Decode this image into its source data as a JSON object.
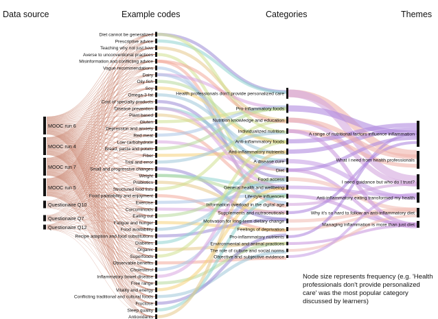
{
  "headers": {
    "data_source": "Data source",
    "example_codes": "Example codes",
    "categories": "Categories",
    "themes": "Themes"
  },
  "sources": [
    "MOOC run 6",
    "MOOC run 4",
    "MOOC run 7",
    "MOOC run 5",
    "Questionaire Q10",
    "Questionaire Q7",
    "Questionaire Q12"
  ],
  "codes": [
    "Diet cannot be generalized",
    "Prescriptive advice",
    "Teaching why not just how",
    "Averse to unconventional practices",
    "Misinformation and conflicting advice",
    "Vague recommendations",
    "Dairy",
    "Oily fish",
    "Soy",
    "Omega-3 fat",
    "Cost of specialty products",
    "Disease prevention",
    "Plant based",
    "Gluten",
    "Depression and anxiety",
    "Red meat",
    "Low carbohydrate",
    "Bread, pasta and potato",
    "Fiber",
    "Trial and error",
    "Small and progressive changes",
    "Weight",
    "Probiotics",
    "Structured food lists",
    "Food palatability and enjoyment",
    "Exercise",
    "Curcuminoids",
    "Eating out",
    "Fatigue and hunger",
    "Food availability",
    "Recipe adaption and food substitutions",
    "Diabetes",
    "Organic",
    "Superfoods",
    "Observable benefits",
    "Cholesterol",
    "Inflammatory bowel disease",
    "Free range",
    "Vitality and energy",
    "Conflicting traditional and cultural foods",
    "Fructose",
    "Sleep quality",
    "Antioxidants"
  ],
  "categories": [
    "Health professionals don't provide personalized care",
    "Pro-inflammatory foods",
    "Nutrition knowledge and education",
    "Individualized nutrition",
    "Anti-inflammatory foods",
    "Anti-inflammatory nutrients",
    "A disease cure",
    "Diet",
    "Food access",
    "General health and wellbeing",
    "Lifestyle influences",
    "Information overload in the digital age",
    "Supplements and nutraceuticals",
    "Motivation for long-term dietary change",
    "Feelings of deprivation",
    "Pro-inflammatory nutrients",
    "Environmental and animal practices",
    "The role of culture and social norms",
    "Objective and subjective evidence"
  ],
  "themes": [
    "A range of nutritional factors influence inflammation",
    "What I need from health professionals",
    "I need guidance but who do I trust?",
    "Anti-inflammatory eating transformed my health",
    "Why it's so hard to follow an anti-inflammatory diet",
    "Managing inflammation is more than just diet"
  ],
  "note": "Node size represents frequency (e.g. 'Health professionals don't provide personalized care' was the most popular category discussed by learners)",
  "colors": {
    "node": "#111111",
    "source_flow": "#c9826b",
    "palette": [
      "#9b8ad6",
      "#8fd4cf",
      "#e6c98a",
      "#cfe08f",
      "#f2a99a",
      "#a9c4e6",
      "#d8a6e0",
      "#b6d89a",
      "#f5d27a",
      "#9fc6d8"
    ],
    "theme_flows": [
      "#b08ae0",
      "#f0b4ab",
      "#d4a6de",
      "#c8a2e6",
      "#f2c0b8",
      "#cc9be0"
    ]
  },
  "flows": {
    "code_to_category": [
      [
        0,
        0
      ],
      [
        1,
        0
      ],
      [
        2,
        2
      ],
      [
        3,
        9
      ],
      [
        4,
        11
      ],
      [
        5,
        11
      ],
      [
        6,
        1
      ],
      [
        7,
        4
      ],
      [
        8,
        4
      ],
      [
        9,
        5
      ],
      [
        10,
        8
      ],
      [
        11,
        6
      ],
      [
        12,
        7
      ],
      [
        13,
        1
      ],
      [
        14,
        9
      ],
      [
        15,
        1
      ],
      [
        16,
        7
      ],
      [
        17,
        1
      ],
      [
        18,
        5
      ],
      [
        19,
        3
      ],
      [
        20,
        13
      ],
      [
        21,
        9
      ],
      [
        22,
        12
      ],
      [
        23,
        2
      ],
      [
        24,
        14
      ],
      [
        25,
        10
      ],
      [
        26,
        12
      ],
      [
        27,
        8
      ],
      [
        28,
        14
      ],
      [
        29,
        8
      ],
      [
        30,
        13
      ],
      [
        31,
        6
      ],
      [
        32,
        16
      ],
      [
        33,
        4
      ],
      [
        34,
        18
      ],
      [
        35,
        9
      ],
      [
        36,
        6
      ],
      [
        37,
        16
      ],
      [
        38,
        9
      ],
      [
        39,
        17
      ],
      [
        40,
        15
      ],
      [
        41,
        10
      ],
      [
        42,
        5
      ],
      [
        0,
        3
      ],
      [
        4,
        2
      ],
      [
        6,
        7
      ],
      [
        11,
        9
      ],
      [
        21,
        10
      ]
    ],
    "category_to_theme": [
      [
        0,
        1
      ],
      [
        0,
        2
      ],
      [
        1,
        0
      ],
      [
        2,
        2
      ],
      [
        3,
        1
      ],
      [
        4,
        0
      ],
      [
        5,
        0
      ],
      [
        6,
        3
      ],
      [
        7,
        0
      ],
      [
        7,
        5
      ],
      [
        8,
        4
      ],
      [
        9,
        3
      ],
      [
        10,
        5
      ],
      [
        11,
        2
      ],
      [
        12,
        0
      ],
      [
        13,
        4
      ],
      [
        14,
        4
      ],
      [
        15,
        0
      ],
      [
        16,
        5
      ],
      [
        17,
        4
      ],
      [
        18,
        3
      ],
      [
        2,
        1
      ],
      [
        3,
        5
      ]
    ]
  }
}
